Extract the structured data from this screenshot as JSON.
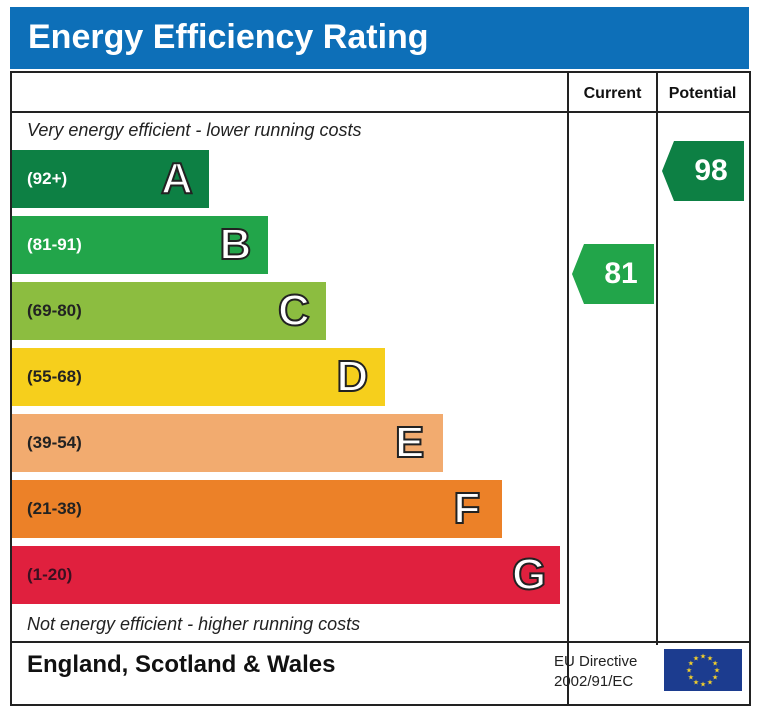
{
  "title": "Energy Efficiency Rating",
  "columns": {
    "current": "Current",
    "potential": "Potential"
  },
  "top_note": "Very energy efficient - lower running costs",
  "bottom_note": "Not energy efficient - higher running costs",
  "footer": {
    "region": "England, Scotland & Wales",
    "directive_line1": "EU Directive",
    "directive_line2": "2002/91/EC",
    "flag_icon": "eu-flag-icon"
  },
  "colors": {
    "header": "#0d6fb8",
    "A": "#0d8044",
    "B": "#22a54a",
    "C": "#8cbd40",
    "D": "#f6cf1c",
    "E": "#f2ab6f",
    "F": "#ec8128",
    "G": "#e0203e"
  },
  "chart_data": {
    "type": "bar",
    "categories": [
      "A",
      "B",
      "C",
      "D",
      "E",
      "F",
      "G"
    ],
    "ranges": [
      "(92+)",
      "(81-91)",
      "(69-80)",
      "(55-68)",
      "(39-54)",
      "(21-38)",
      "(1-20)"
    ],
    "current": {
      "value": 81,
      "band": "B"
    },
    "potential": {
      "value": 98,
      "band": "A"
    }
  }
}
